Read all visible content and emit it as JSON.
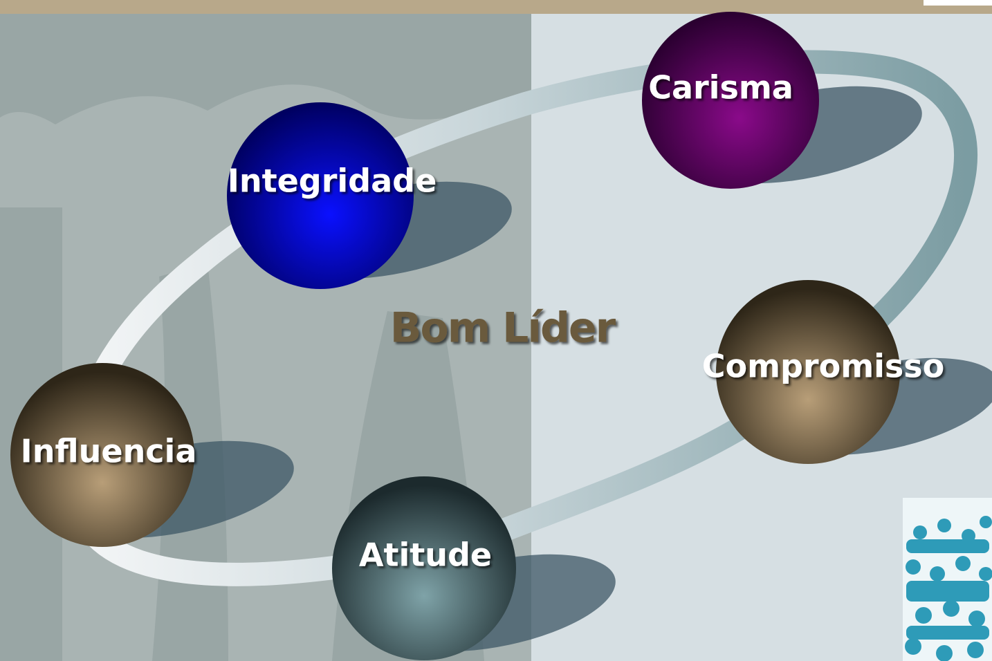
{
  "center": {
    "label": "Bom Líder"
  },
  "nodes": [
    {
      "label": "Carisma"
    },
    {
      "label": "Integridade"
    },
    {
      "label": "Compromisso"
    },
    {
      "label": "Influencia"
    },
    {
      "label": "Atitude"
    }
  ]
}
